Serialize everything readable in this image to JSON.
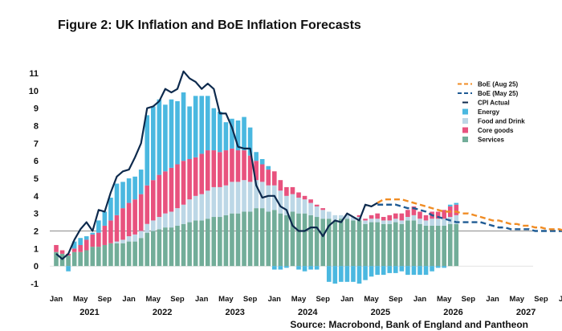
{
  "chart_data": {
    "type": "bar",
    "title": "Figure 2: UK Inflation and BoE Inflation Forecasts",
    "source": "Source: Macrobond, Bank of England and Pantheon",
    "ylim": [
      -1,
      11
    ],
    "y_ticks": [
      "-1",
      "0",
      "1",
      "2",
      "3",
      "4",
      "5",
      "6",
      "7",
      "8",
      "9",
      "10",
      "11"
    ],
    "reference_line": 2,
    "month_labels": [
      "Jan",
      "May",
      "Sep",
      "Jan",
      "May",
      "Sep",
      "Jan",
      "May",
      "Sep",
      "Jan",
      "May",
      "Sep",
      "Jan",
      "May",
      "Sep",
      "Jan",
      "May",
      "Sep",
      "Jan",
      "May",
      "Sep",
      "Jan"
    ],
    "year_labels": [
      "2021",
      "2022",
      "2023",
      "2024",
      "2025",
      "2026",
      "2027"
    ],
    "colors": {
      "energy": "#4ab8e0",
      "food": "#bcd7e6",
      "core": "#e8527e",
      "services": "#72ad99",
      "cpi": "#0d2a4d",
      "boe_aug": "#f08c24",
      "boe_may": "#1f5b94",
      "reference": "#8c8c8c"
    },
    "legend": [
      {
        "key": "boe_aug",
        "label": "BoE (Aug 25)",
        "style": "dash"
      },
      {
        "key": "boe_may",
        "label": "BoE (May 25)",
        "style": "dash"
      },
      {
        "key": "cpi",
        "label": "CPI Actual",
        "style": "line"
      },
      {
        "key": "energy",
        "label": "Energy",
        "style": "box"
      },
      {
        "key": "food",
        "label": "Food and Drink",
        "style": "box"
      },
      {
        "key": "core",
        "label": "Core goods",
        "style": "box"
      },
      {
        "key": "services",
        "label": "Services",
        "style": "box"
      }
    ],
    "x_start": "2021-01",
    "stack_order": [
      "services",
      "food",
      "core",
      "energy"
    ],
    "stacks": {
      "services": [
        0.8,
        0.7,
        0.6,
        0.8,
        0.8,
        0.9,
        1.1,
        1.1,
        1.2,
        1.3,
        1.3,
        1.3,
        1.4,
        1.4,
        1.6,
        1.9,
        2.0,
        2.1,
        2.2,
        2.2,
        2.3,
        2.4,
        2.5,
        2.6,
        2.6,
        2.7,
        2.8,
        2.8,
        2.9,
        3.0,
        3.0,
        3.1,
        3.1,
        3.3,
        3.3,
        3.1,
        3.2,
        3.0,
        2.9,
        3.1,
        3.0,
        3.0,
        2.9,
        2.8,
        2.7,
        2.7,
        2.6,
        2.7,
        2.7,
        2.6,
        2.6,
        2.4,
        2.5,
        2.5,
        2.4,
        2.4,
        2.5,
        2.4,
        2.6,
        2.6,
        2.4,
        2.3,
        2.3,
        2.3,
        2.3,
        2.4,
        2.4
      ],
      "food": [
        0.0,
        0.0,
        0.0,
        0.0,
        0.0,
        0.0,
        0.0,
        0.0,
        0.0,
        0.0,
        0.1,
        0.2,
        0.3,
        0.4,
        0.4,
        0.5,
        0.6,
        0.7,
        0.8,
        0.9,
        1.0,
        1.1,
        1.3,
        1.4,
        1.5,
        1.6,
        1.7,
        1.7,
        1.7,
        1.8,
        1.8,
        1.8,
        1.7,
        1.6,
        1.5,
        1.5,
        1.4,
        1.3,
        1.1,
        1.0,
        0.9,
        0.8,
        0.7,
        0.6,
        0.5,
        0.4,
        0.3,
        0.2,
        0.2,
        0.2,
        0.2,
        0.2,
        0.2,
        0.2,
        0.2,
        0.2,
        0.2,
        0.2,
        0.2,
        0.3,
        0.3,
        0.3,
        0.4,
        0.4,
        0.4,
        0.4,
        0.5
      ],
      "core": [
        0.4,
        0.2,
        0.1,
        0.2,
        0.4,
        0.6,
        0.7,
        0.8,
        1.1,
        1.3,
        1.5,
        1.8,
        1.9,
        2.0,
        2.1,
        2.2,
        2.3,
        2.4,
        2.4,
        2.5,
        2.5,
        2.5,
        2.3,
        2.2,
        2.3,
        2.3,
        2.1,
        2.0,
        2.0,
        1.9,
        1.8,
        1.7,
        1.5,
        1.1,
        1.0,
        0.9,
        0.8,
        0.6,
        0.5,
        0.4,
        0.3,
        0.2,
        0.2,
        0.1,
        0.1,
        0.0,
        0.0,
        0.0,
        0.0,
        0.0,
        0.1,
        0.1,
        0.2,
        0.3,
        0.2,
        0.3,
        0.3,
        0.4,
        0.4,
        0.5,
        0.4,
        0.3,
        0.4,
        0.4,
        0.5,
        0.6,
        0.6
      ],
      "energy": [
        0.0,
        0.0,
        -0.3,
        0.4,
        0.4,
        0.2,
        0.1,
        0.7,
        0.8,
        1.3,
        1.8,
        1.5,
        1.4,
        1.3,
        1.4,
        4.0,
        4.2,
        4.3,
        3.8,
        3.9,
        3.6,
        3.9,
        3.0,
        3.5,
        3.3,
        3.1,
        2.4,
        2.3,
        1.6,
        1.7,
        1.7,
        1.9,
        1.6,
        0.5,
        0.3,
        0.2,
        -0.2,
        -0.2,
        -0.1,
        0.0,
        -0.2,
        -0.3,
        -0.2,
        -0.2,
        0.0,
        -0.9,
        -1.0,
        -0.9,
        -0.9,
        -0.9,
        -1.0,
        -0.8,
        -0.6,
        -0.5,
        -0.5,
        -0.4,
        -0.4,
        -0.3,
        -0.5,
        -0.5,
        -0.5,
        -0.5,
        -0.3,
        -0.1,
        -0.1,
        0.1,
        0.1
      ]
    },
    "series": [
      {
        "name": "CPI Actual",
        "key": "cpi",
        "start": "2021-01",
        "values": [
          0.7,
          0.4,
          0.7,
          1.5,
          2.1,
          2.5,
          2.0,
          3.2,
          3.1,
          4.2,
          5.1,
          5.4,
          5.5,
          6.2,
          7.0,
          9.0,
          9.1,
          9.4,
          10.1,
          9.9,
          10.1,
          11.1,
          10.7,
          10.5,
          10.1,
          10.4,
          10.1,
          8.7,
          8.7,
          7.9,
          6.8,
          6.7,
          6.7,
          4.6,
          3.9,
          4.0,
          4.0,
          3.4,
          3.2,
          2.3,
          2.0,
          2.0,
          2.2,
          2.2,
          1.7,
          2.3,
          2.6,
          2.5,
          3.0,
          2.8,
          2.6,
          3.5,
          3.4,
          3.6
        ]
      },
      {
        "name": "BoE (Aug 25)",
        "key": "boe_aug",
        "start": "2025-06",
        "values": [
          3.6,
          3.8,
          3.8,
          3.8,
          3.8,
          3.7,
          3.6,
          3.5,
          3.4,
          3.3,
          3.2,
          3.1,
          3.1,
          3.1,
          3.0,
          3.0,
          2.9,
          2.8,
          2.7,
          2.6,
          2.6,
          2.5,
          2.4,
          2.4,
          2.3,
          2.3,
          2.2,
          2.2,
          2.1,
          2.1,
          2.1,
          2.0,
          2.0,
          2.0,
          2.0,
          2.0,
          2.0,
          2.0,
          2.0
        ]
      },
      {
        "name": "BoE (May 25)",
        "key": "boe_may",
        "start": "2025-06",
        "values": [
          3.5,
          3.5,
          3.5,
          3.5,
          3.4,
          3.3,
          3.3,
          3.2,
          3.1,
          2.9,
          2.8,
          2.7,
          2.6,
          2.5,
          2.5,
          2.5,
          2.5,
          2.5,
          2.4,
          2.3,
          2.2,
          2.2,
          2.1,
          2.1,
          2.1,
          2.1,
          2.0,
          2.0,
          2.0,
          2.0,
          2.0,
          2.0,
          1.9,
          1.9,
          1.9,
          1.9,
          1.9,
          1.8,
          1.8
        ]
      }
    ]
  }
}
